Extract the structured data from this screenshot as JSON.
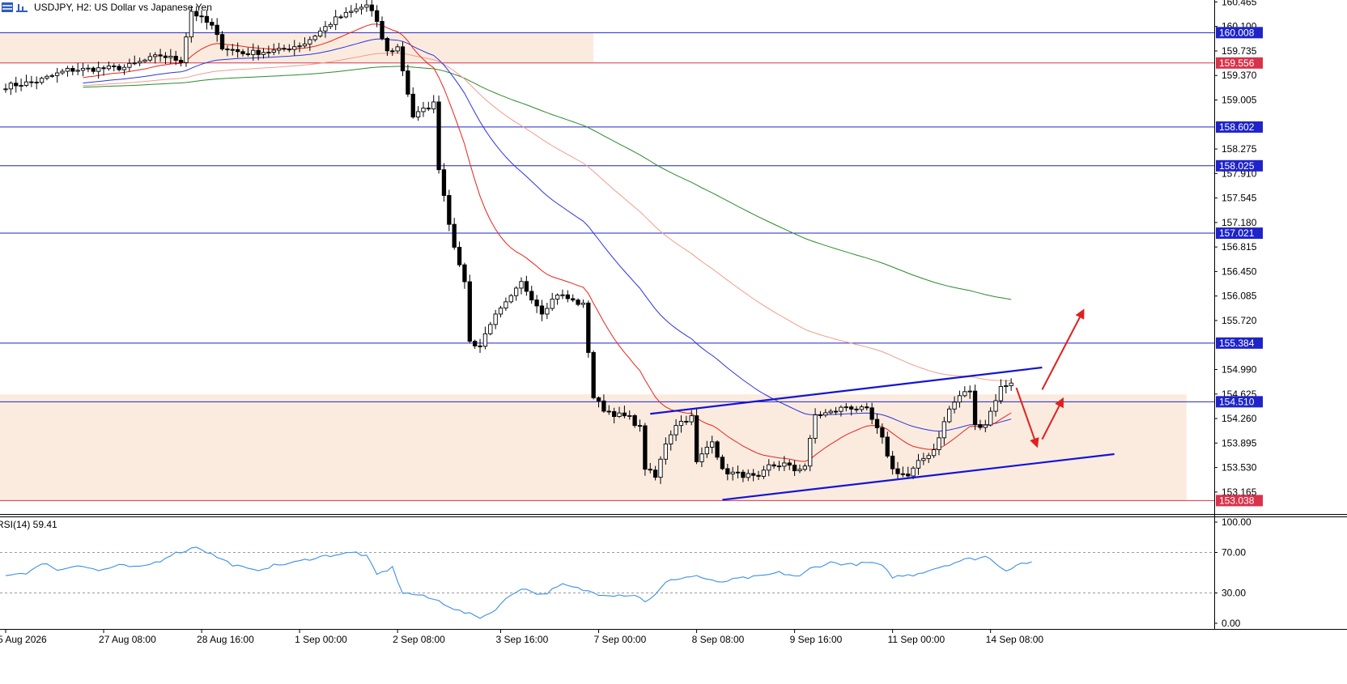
{
  "header": {
    "symbol_label": "USDJPY, H2:  US Dollar vs Japanese Yen",
    "icons": [
      "grid-icon",
      "bars-icon"
    ]
  },
  "colors": {
    "zone_fill": "#fbebdf",
    "blue_level": "#1f24c9",
    "red_level": "#d9334b",
    "ema_red": "#e8231a",
    "ema_blue": "#2b34e0",
    "ema_salmon": "#f29c8a",
    "ema_green": "#2c8a2c",
    "channel": "#1414d6",
    "arrow": "#e02020",
    "rsi_line": "#3a8ee8",
    "candle": "#000000"
  },
  "chart_data": [
    {
      "type": "candlestick",
      "title": "USDJPY, H2:  US Dollar vs Japanese Yen",
      "ylim": [
        152.85,
        160.47
      ],
      "y_ticks": [
        "160.465",
        "160.100",
        "159.735",
        "159.370",
        "159.005",
        "158.275",
        "157.910",
        "157.545",
        "157.180",
        "156.815",
        "156.450",
        "156.085",
        "155.720",
        "154.990",
        "154.625",
        "154.260",
        "153.895",
        "153.530",
        "153.165"
      ],
      "x_tick_labels": [
        "5 Aug 2026",
        "27 Aug 08:00",
        "28 Aug 16:00",
        "1 Sep 00:00",
        "2 Sep 08:00",
        "3 Sep 16:00",
        "7 Sep 00:00",
        "8 Sep 08:00",
        "9 Sep 16:00",
        "11 Sep 00:00",
        "14 Sep 08:00"
      ],
      "x_tick_bars": [
        0,
        19,
        38,
        57,
        76,
        96,
        115,
        134,
        153,
        172,
        191
      ],
      "bar_count": 205,
      "horizontal_levels": [
        {
          "price": 160.008,
          "label": "160.008",
          "color": "blue"
        },
        {
          "price": 159.556,
          "label": "159.556",
          "color": "red"
        },
        {
          "price": 158.602,
          "label": "158.602",
          "color": "blue"
        },
        {
          "price": 158.025,
          "label": "158.025",
          "color": "blue"
        },
        {
          "price": 157.021,
          "label": "157.021",
          "color": "blue"
        },
        {
          "price": 155.384,
          "label": "155.384",
          "color": "blue"
        },
        {
          "price": 154.51,
          "label": "154.510",
          "color": "blue"
        },
        {
          "price": 153.038,
          "label": "153.038",
          "color": "red"
        }
      ],
      "zones": [
        {
          "from_price": 159.556,
          "to_price": 160.008,
          "from_bar": 0,
          "to_bar": 114
        },
        {
          "from_price": 153.038,
          "to_price": 154.62,
          "from_bar": 0,
          "to_bar": 229
        }
      ],
      "channel_lines": [
        {
          "from": [
            125,
            154.33
          ],
          "to": [
            201,
            155.02
          ]
        },
        {
          "from": [
            139,
            153.05
          ],
          "to": [
            215,
            153.73
          ]
        }
      ],
      "arrows": [
        {
          "from": [
            196,
            154.72
          ],
          "to": [
            200,
            153.85
          ]
        },
        {
          "from": [
            201,
            153.95
          ],
          "to": [
            205,
            154.55
          ]
        },
        {
          "from": [
            201,
            154.69
          ],
          "to": [
            209,
            155.87
          ]
        }
      ],
      "anchors": [
        [
          0,
          159.21
        ],
        [
          6,
          159.28
        ],
        [
          12,
          159.45
        ],
        [
          18,
          159.47
        ],
        [
          23,
          159.49
        ],
        [
          30,
          159.67
        ],
        [
          34,
          159.59
        ],
        [
          36,
          160.33
        ],
        [
          40,
          160.1
        ],
        [
          42,
          159.8
        ],
        [
          46,
          159.7
        ],
        [
          53,
          159.74
        ],
        [
          58,
          159.85
        ],
        [
          64,
          160.21
        ],
        [
          68,
          160.35
        ],
        [
          70,
          160.42
        ],
        [
          71,
          160.32
        ],
        [
          72,
          160.14
        ],
        [
          74,
          159.72
        ],
        [
          76,
          159.79
        ],
        [
          77,
          159.45
        ],
        [
          79,
          158.76
        ],
        [
          83,
          158.95
        ],
        [
          84,
          158.0
        ],
        [
          86,
          157.18
        ],
        [
          88,
          156.51
        ],
        [
          89,
          156.32
        ],
        [
          90,
          155.4
        ],
        [
          92,
          155.34
        ],
        [
          94,
          155.69
        ],
        [
          98,
          156.06
        ],
        [
          100,
          156.28
        ],
        [
          104,
          155.85
        ],
        [
          107,
          156.12
        ],
        [
          110,
          156.01
        ],
        [
          112,
          155.95
        ],
        [
          114,
          154.58
        ],
        [
          116,
          154.4
        ],
        [
          118,
          154.33
        ],
        [
          121,
          154.27
        ],
        [
          123,
          154.12
        ],
        [
          124,
          153.53
        ],
        [
          126,
          153.38
        ],
        [
          128,
          153.9
        ],
        [
          130,
          154.18
        ],
        [
          133,
          154.28
        ],
        [
          134,
          153.6
        ],
        [
          137,
          153.95
        ],
        [
          139,
          153.48
        ],
        [
          142,
          153.43
        ],
        [
          144,
          153.41
        ],
        [
          146,
          153.36
        ],
        [
          148,
          153.55
        ],
        [
          151,
          153.58
        ],
        [
          153,
          153.49
        ],
        [
          155,
          153.56
        ],
        [
          157,
          154.31
        ],
        [
          160,
          154.35
        ],
        [
          163,
          154.44
        ],
        [
          167,
          154.38
        ],
        [
          170,
          153.95
        ],
        [
          172,
          153.5
        ],
        [
          175,
          153.4
        ],
        [
          177,
          153.6
        ],
        [
          180,
          153.8
        ],
        [
          183,
          154.4
        ],
        [
          185,
          154.6
        ],
        [
          187,
          154.68
        ],
        [
          188,
          154.15
        ],
        [
          190,
          154.18
        ],
        [
          192,
          154.55
        ],
        [
          193,
          154.72
        ],
        [
          195,
          154.81
        ]
      ]
    },
    {
      "type": "line",
      "title": "RSI(14) 59.41",
      "ylim": [
        0,
        100
      ],
      "y_ticks": [
        "100.00",
        "70.00",
        "30.00",
        "0.00"
      ],
      "levels": [
        70,
        30
      ],
      "anchors": [
        [
          0,
          48
        ],
        [
          4,
          50
        ],
        [
          8,
          60
        ],
        [
          10,
          52
        ],
        [
          14,
          58
        ],
        [
          18,
          52
        ],
        [
          22,
          57
        ],
        [
          26,
          55
        ],
        [
          30,
          62
        ],
        [
          32,
          68
        ],
        [
          35,
          72
        ],
        [
          37,
          76
        ],
        [
          40,
          68
        ],
        [
          44,
          58
        ],
        [
          48,
          52
        ],
        [
          52,
          57
        ],
        [
          56,
          60
        ],
        [
          60,
          65
        ],
        [
          64,
          68
        ],
        [
          68,
          70
        ],
        [
          70,
          66
        ],
        [
          72,
          48
        ],
        [
          75,
          55
        ],
        [
          77,
          30
        ],
        [
          80,
          28
        ],
        [
          84,
          22
        ],
        [
          88,
          12
        ],
        [
          92,
          6
        ],
        [
          94,
          10
        ],
        [
          98,
          28
        ],
        [
          100,
          35
        ],
        [
          104,
          28
        ],
        [
          108,
          38
        ],
        [
          112,
          33
        ],
        [
          115,
          29
        ],
        [
          118,
          28
        ],
        [
          122,
          28
        ],
        [
          124,
          22
        ],
        [
          126,
          28
        ],
        [
          128,
          40
        ],
        [
          130,
          44
        ],
        [
          134,
          47
        ],
        [
          138,
          40
        ],
        [
          142,
          44
        ],
        [
          146,
          46
        ],
        [
          150,
          50
        ],
        [
          154,
          46
        ],
        [
          156,
          54
        ],
        [
          160,
          60
        ],
        [
          164,
          58
        ],
        [
          168,
          60
        ],
        [
          170,
          56
        ],
        [
          172,
          46
        ],
        [
          176,
          48
        ],
        [
          180,
          54
        ],
        [
          184,
          60
        ],
        [
          186,
          63
        ],
        [
          188,
          64
        ],
        [
          190,
          66
        ],
        [
          192,
          60
        ],
        [
          194,
          52
        ],
        [
          196,
          58
        ],
        [
          198,
          60
        ],
        [
          199,
          59.41
        ]
      ]
    }
  ]
}
